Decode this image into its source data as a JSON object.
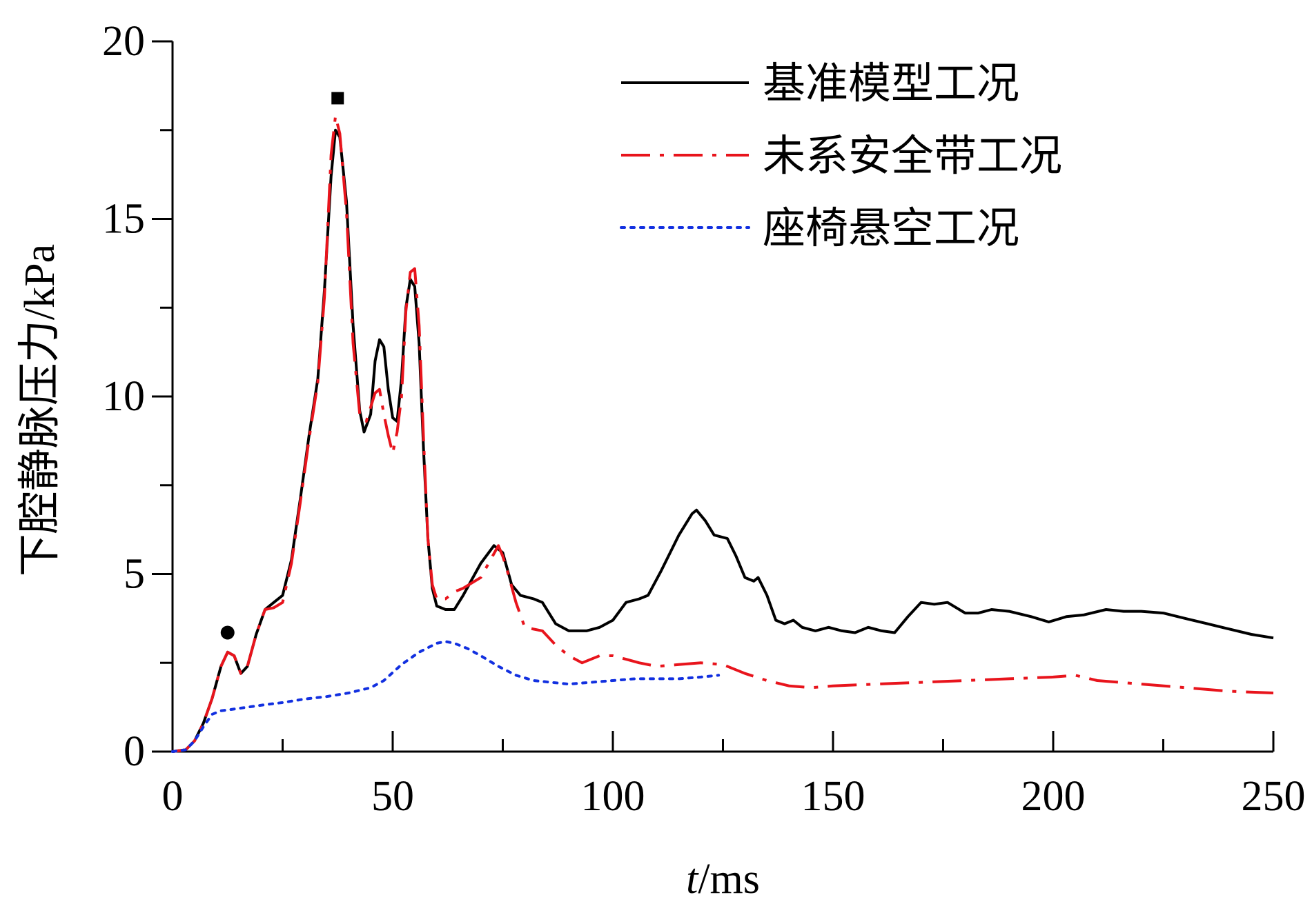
{
  "chart_data": {
    "type": "line",
    "xlabel_italic": "t",
    "xlabel_rest": "/ms",
    "ylabel": "下腔静脉压力/kPa",
    "xlim": [
      0,
      250
    ],
    "ylim": [
      0,
      20
    ],
    "xticks": [
      0,
      50,
      100,
      150,
      200,
      250
    ],
    "yticks": [
      0,
      5,
      10,
      15,
      20
    ],
    "x_minor_step": 25,
    "y_minor_step": 2.5,
    "grid": false,
    "legend_position": "top-right",
    "series": [
      {
        "name": "基准模型工况",
        "color": "#000000",
        "style": "solid",
        "points": [
          [
            0,
            0
          ],
          [
            3,
            0.05
          ],
          [
            5,
            0.3
          ],
          [
            7,
            0.8
          ],
          [
            9,
            1.5
          ],
          [
            11,
            2.4
          ],
          [
            12.5,
            2.8
          ],
          [
            14,
            2.7
          ],
          [
            15.5,
            2.2
          ],
          [
            17,
            2.4
          ],
          [
            19,
            3.3
          ],
          [
            21,
            4.0
          ],
          [
            23,
            4.2
          ],
          [
            25,
            4.4
          ],
          [
            27,
            5.4
          ],
          [
            29,
            7.1
          ],
          [
            31,
            8.9
          ],
          [
            33,
            10.5
          ],
          [
            34.5,
            13.0
          ],
          [
            36,
            16.2
          ],
          [
            37,
            17.5
          ],
          [
            38,
            17.3
          ],
          [
            39.5,
            15.5
          ],
          [
            41,
            12.0
          ],
          [
            42.5,
            9.6
          ],
          [
            43.5,
            9.0
          ],
          [
            45,
            9.5
          ],
          [
            46,
            11.0
          ],
          [
            47,
            11.6
          ],
          [
            48,
            11.4
          ],
          [
            49,
            10.2
          ],
          [
            50,
            9.4
          ],
          [
            51,
            9.3
          ],
          [
            52,
            10.5
          ],
          [
            53,
            12.5
          ],
          [
            54,
            13.3
          ],
          [
            55,
            13.1
          ],
          [
            56,
            11.5
          ],
          [
            57,
            8.5
          ],
          [
            58,
            6.0
          ],
          [
            59,
            4.6
          ],
          [
            60,
            4.1
          ],
          [
            62,
            4.0
          ],
          [
            64,
            4.0
          ],
          [
            66,
            4.4
          ],
          [
            70,
            5.3
          ],
          [
            73,
            5.8
          ],
          [
            75,
            5.6
          ],
          [
            77,
            4.7
          ],
          [
            79,
            4.4
          ],
          [
            82,
            4.3
          ],
          [
            84,
            4.2
          ],
          [
            87,
            3.6
          ],
          [
            90,
            3.4
          ],
          [
            94,
            3.4
          ],
          [
            97,
            3.5
          ],
          [
            100,
            3.7
          ],
          [
            103,
            4.2
          ],
          [
            106,
            4.3
          ],
          [
            108,
            4.4
          ],
          [
            111,
            5.1
          ],
          [
            115,
            6.1
          ],
          [
            118,
            6.7
          ],
          [
            119,
            6.8
          ],
          [
            121,
            6.5
          ],
          [
            123,
            6.1
          ],
          [
            126,
            6.0
          ],
          [
            128,
            5.5
          ],
          [
            130,
            4.9
          ],
          [
            132,
            4.8
          ],
          [
            133,
            4.9
          ],
          [
            135,
            4.4
          ],
          [
            137,
            3.7
          ],
          [
            139,
            3.6
          ],
          [
            141,
            3.7
          ],
          [
            143,
            3.5
          ],
          [
            146,
            3.4
          ],
          [
            149,
            3.5
          ],
          [
            152,
            3.4
          ],
          [
            155,
            3.35
          ],
          [
            158,
            3.5
          ],
          [
            161,
            3.4
          ],
          [
            164,
            3.35
          ],
          [
            167,
            3.8
          ],
          [
            170,
            4.2
          ],
          [
            173,
            4.15
          ],
          [
            176,
            4.2
          ],
          [
            180,
            3.9
          ],
          [
            183,
            3.9
          ],
          [
            186,
            4.0
          ],
          [
            190,
            3.95
          ],
          [
            195,
            3.8
          ],
          [
            199,
            3.65
          ],
          [
            203,
            3.8
          ],
          [
            207,
            3.85
          ],
          [
            212,
            4.0
          ],
          [
            216,
            3.95
          ],
          [
            220,
            3.95
          ],
          [
            225,
            3.9
          ],
          [
            230,
            3.75
          ],
          [
            235,
            3.6
          ],
          [
            240,
            3.45
          ],
          [
            245,
            3.3
          ],
          [
            250,
            3.2
          ]
        ]
      },
      {
        "name": "未系安全带工况",
        "color": "#e8141c",
        "style": "dashdot",
        "points": [
          [
            0,
            0
          ],
          [
            3,
            0.05
          ],
          [
            5,
            0.3
          ],
          [
            7,
            0.8
          ],
          [
            9,
            1.5
          ],
          [
            11,
            2.4
          ],
          [
            12.5,
            2.8
          ],
          [
            14,
            2.7
          ],
          [
            15.5,
            2.2
          ],
          [
            17,
            2.4
          ],
          [
            19,
            3.3
          ],
          [
            21,
            4.0
          ],
          [
            23,
            4.05
          ],
          [
            25,
            4.2
          ],
          [
            27,
            5.3
          ],
          [
            29,
            7.0
          ],
          [
            31,
            8.8
          ],
          [
            33,
            10.4
          ],
          [
            34.5,
            12.8
          ],
          [
            36,
            16.8
          ],
          [
            37,
            17.9
          ],
          [
            38,
            17.4
          ],
          [
            39.5,
            15.2
          ],
          [
            41,
            11.5
          ],
          [
            42.5,
            9.5
          ],
          [
            44,
            9.3
          ],
          [
            46,
            10.1
          ],
          [
            47,
            10.2
          ],
          [
            48,
            9.5
          ],
          [
            49,
            8.9
          ],
          [
            50,
            8.4
          ],
          [
            51,
            9.0
          ],
          [
            52,
            10.0
          ],
          [
            53,
            12.4
          ],
          [
            54,
            13.5
          ],
          [
            55,
            13.6
          ],
          [
            56,
            12.0
          ],
          [
            57,
            8.8
          ],
          [
            58,
            6.0
          ],
          [
            59,
            4.7
          ],
          [
            60,
            4.3
          ],
          [
            62,
            4.3
          ],
          [
            64,
            4.5
          ],
          [
            66,
            4.6
          ],
          [
            70,
            4.9
          ],
          [
            74,
            5.8
          ],
          [
            75,
            5.5
          ],
          [
            76,
            5.1
          ],
          [
            78,
            4.2
          ],
          [
            80,
            3.5
          ],
          [
            84,
            3.4
          ],
          [
            87,
            3.0
          ],
          [
            90,
            2.7
          ],
          [
            93,
            2.5
          ],
          [
            97,
            2.7
          ],
          [
            100,
            2.7
          ],
          [
            103,
            2.6
          ],
          [
            106,
            2.5
          ],
          [
            110,
            2.4
          ],
          [
            115,
            2.45
          ],
          [
            120,
            2.5
          ],
          [
            125,
            2.45
          ],
          [
            130,
            2.2
          ],
          [
            135,
            2.0
          ],
          [
            140,
            1.85
          ],
          [
            145,
            1.8
          ],
          [
            150,
            1.85
          ],
          [
            160,
            1.9
          ],
          [
            170,
            1.95
          ],
          [
            180,
            2.0
          ],
          [
            190,
            2.05
          ],
          [
            200,
            2.1
          ],
          [
            205,
            2.15
          ],
          [
            210,
            2.0
          ],
          [
            220,
            1.9
          ],
          [
            230,
            1.8
          ],
          [
            240,
            1.7
          ],
          [
            250,
            1.65
          ]
        ]
      },
      {
        "name": "座椅悬空工况",
        "color": "#1230e0",
        "style": "dotted",
        "points": [
          [
            0,
            0
          ],
          [
            3,
            0.05
          ],
          [
            5,
            0.3
          ],
          [
            7,
            0.7
          ],
          [
            9,
            1.05
          ],
          [
            11,
            1.15
          ],
          [
            13,
            1.18
          ],
          [
            17,
            1.25
          ],
          [
            21,
            1.32
          ],
          [
            25,
            1.38
          ],
          [
            30,
            1.48
          ],
          [
            35,
            1.55
          ],
          [
            40,
            1.65
          ],
          [
            45,
            1.8
          ],
          [
            48,
            2.0
          ],
          [
            52,
            2.45
          ],
          [
            56,
            2.8
          ],
          [
            60,
            3.05
          ],
          [
            62,
            3.1
          ],
          [
            64,
            3.05
          ],
          [
            67,
            2.9
          ],
          [
            70,
            2.7
          ],
          [
            74,
            2.4
          ],
          [
            78,
            2.15
          ],
          [
            82,
            2.0
          ],
          [
            86,
            1.95
          ],
          [
            90,
            1.9
          ],
          [
            95,
            1.95
          ],
          [
            100,
            2.0
          ],
          [
            105,
            2.05
          ],
          [
            110,
            2.05
          ],
          [
            115,
            2.05
          ],
          [
            120,
            2.1
          ],
          [
            124,
            2.15
          ]
        ]
      }
    ],
    "markers": [
      {
        "shape": "circle",
        "x": 12.5,
        "y": 3.35
      },
      {
        "shape": "square",
        "x": 37.5,
        "y": 18.4
      }
    ]
  }
}
